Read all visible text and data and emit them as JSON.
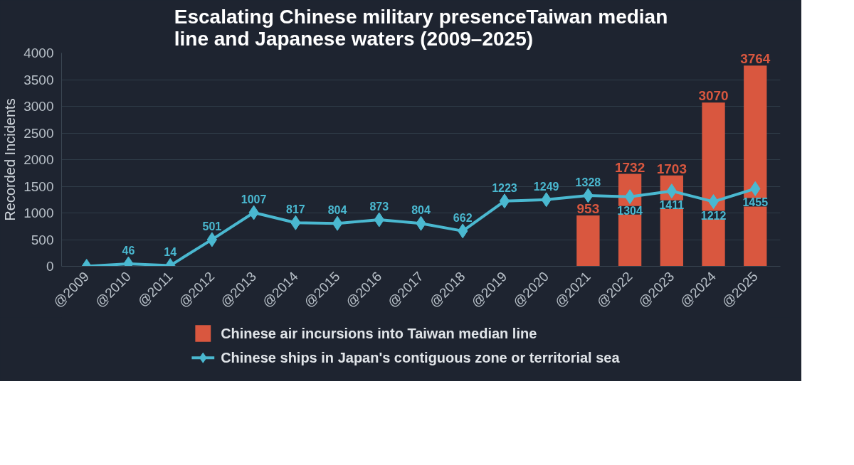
{
  "chart_data": {
    "type": "bar",
    "title": "Escalating Chinese military presenceTaiwan median line and Japanese waters (2009–2025)",
    "ylabel": "Recorded Incidents",
    "categories": [
      "@2009",
      "@2010",
      "@2011",
      "@2012",
      "@2013",
      "@2014",
      "@2015",
      "@2016",
      "@2017",
      "@2018",
      "@2019",
      "@2020",
      "@2021",
      "@2022",
      "@2023",
      "@2024",
      "@2025"
    ],
    "series": [
      {
        "name": "Chinese air incursions into Taiwan median line",
        "color": "#d9573f",
        "values": [
          null,
          null,
          null,
          null,
          null,
          null,
          null,
          null,
          null,
          null,
          null,
          null,
          953,
          1732,
          1703,
          3070,
          3764
        ],
        "value_labels": [
          null,
          null,
          null,
          null,
          null,
          null,
          null,
          null,
          null,
          null,
          null,
          null,
          "953",
          "1732",
          "1703",
          "3070",
          "3764"
        ]
      },
      {
        "name": "Chinese ships in Japan's contiguous zone or territorial sea",
        "type": "line",
        "color": "#4ab8d0",
        "marker": "diamond",
        "values": [
          0,
          46,
          14,
          501,
          1007,
          817,
          804,
          873,
          804,
          662,
          1223,
          1249,
          1328,
          1304,
          1411,
          1212,
          1455
        ],
        "value_labels": [
          null,
          "46",
          "14",
          "501",
          "1007",
          "817",
          "804",
          "873",
          "804",
          "662",
          "1223",
          "1249",
          "1328",
          "1304",
          "1411",
          "1212",
          "1455"
        ]
      }
    ],
    "ylim": [
      0,
      4000
    ],
    "yticks": [
      0,
      500,
      1000,
      1500,
      2000,
      2500,
      3000,
      3500,
      4000
    ],
    "grid": "y",
    "legend": "bottom"
  }
}
